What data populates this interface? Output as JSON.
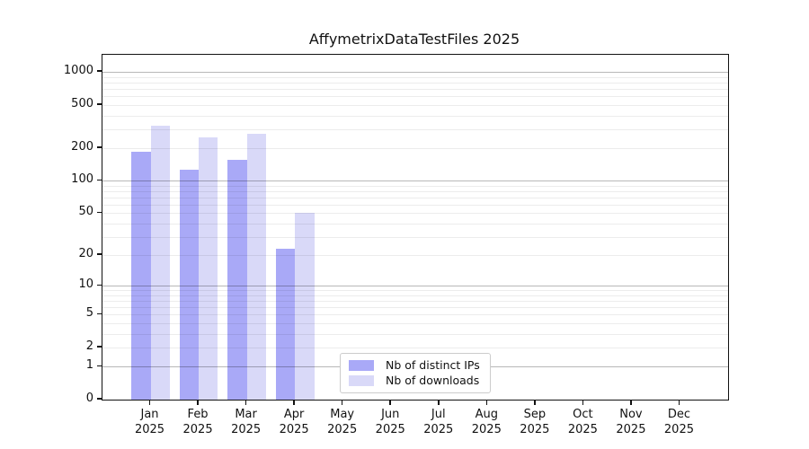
{
  "chart_data": {
    "type": "bar",
    "title": "AffymetrixDataTestFiles 2025",
    "categories": [
      "Jan",
      "Feb",
      "Mar",
      "Apr",
      "May",
      "Jun",
      "Jul",
      "Aug",
      "Sep",
      "Oct",
      "Nov",
      "Dec"
    ],
    "x_tick_year": "2025",
    "series": [
      {
        "name": "Nb of distinct IPs",
        "color": "#a9a9f7",
        "values": [
          185,
          126,
          157,
          23,
          null,
          null,
          null,
          null,
          null,
          null,
          null,
          null
        ]
      },
      {
        "name": "Nb of downloads",
        "color": "#d9d9f8",
        "values": [
          320,
          253,
          272,
          50,
          null,
          null,
          null,
          null,
          null,
          null,
          null,
          null
        ]
      }
    ],
    "y_axis": {
      "scale": "log10(value+1)",
      "tick_values": [
        0,
        1,
        2,
        5,
        10,
        20,
        50,
        100,
        200,
        500,
        1000
      ],
      "max_value": 1440,
      "major_grid_values": [
        1,
        10,
        100,
        1000
      ]
    },
    "grid": "on",
    "legend_position": "bottom-center",
    "colors": {
      "bar_dark": "#a9a9f7",
      "bar_light": "#d9d9f8",
      "grid_minor": "rgba(0,0,0,0.075)",
      "grid_major": "rgba(0,0,0,0.28)",
      "axis": "#111111"
    }
  }
}
